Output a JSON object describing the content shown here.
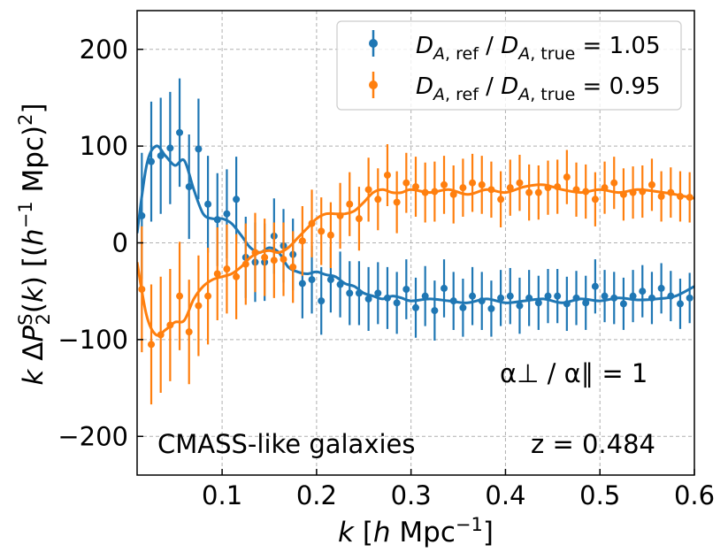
{
  "chart_data": {
    "type": "scatter",
    "xlabel_plain": "k [h Mpc^-1]",
    "ylabel_plain": "k ΔP2^S(k) [(h^-1 Mpc)^2]",
    "xlim": [
      0.01,
      0.6
    ],
    "ylim": [
      -240,
      240
    ],
    "xticks": [
      0.1,
      0.2,
      0.3,
      0.4,
      0.5,
      0.6
    ],
    "xtick_labels": [
      "0.1",
      "0.2",
      "0.3",
      "0.4",
      "0.5",
      "0.6"
    ],
    "yticks": [
      -200,
      -100,
      0,
      100,
      200
    ],
    "ytick_labels": [
      "−200",
      "−100",
      "0",
      "100",
      "200"
    ],
    "grid": true,
    "legend_position": "top-right",
    "annotations": {
      "ratio": "α⊥ / α∥ = 1",
      "sample": "CMASS-like galaxies",
      "redshift": "z = 0.484"
    },
    "series": [
      {
        "name": "D_A,ref / D_A,true = 1.05",
        "color": "#1f77b4",
        "x": [
          0.015,
          0.025,
          0.035,
          0.045,
          0.055,
          0.065,
          0.075,
          0.085,
          0.095,
          0.105,
          0.115,
          0.125,
          0.135,
          0.145,
          0.155,
          0.165,
          0.175,
          0.185,
          0.195,
          0.205,
          0.215,
          0.225,
          0.235,
          0.245,
          0.255,
          0.265,
          0.275,
          0.285,
          0.295,
          0.305,
          0.315,
          0.325,
          0.335,
          0.345,
          0.355,
          0.365,
          0.375,
          0.385,
          0.395,
          0.405,
          0.415,
          0.425,
          0.435,
          0.445,
          0.455,
          0.465,
          0.475,
          0.485,
          0.495,
          0.505,
          0.515,
          0.525,
          0.535,
          0.545,
          0.555,
          0.565,
          0.575,
          0.585,
          0.595
        ],
        "y": [
          28,
          84,
          90,
          98,
          114,
          58,
          97,
          40,
          24,
          30,
          45,
          -15,
          -20,
          -20,
          7,
          -3,
          -12,
          -42,
          -38,
          -60,
          -38,
          -43,
          -52,
          -52,
          -58,
          -52,
          -57,
          -62,
          -48,
          -67,
          -55,
          -70,
          -47,
          -60,
          -67,
          -55,
          -60,
          -68,
          -57,
          -55,
          -65,
          -57,
          -62,
          -55,
          -55,
          -63,
          -57,
          -62,
          -45,
          -55,
          -57,
          -63,
          -55,
          -50,
          -57,
          -47,
          -55,
          -63,
          -57
        ],
        "err": [
          65,
          62,
          60,
          58,
          56,
          54,
          52,
          50,
          48,
          46,
          44,
          42,
          41,
          40,
          39,
          38,
          37,
          36,
          35,
          35,
          34,
          34,
          33,
          33,
          33,
          32,
          32,
          32,
          31,
          31,
          31,
          31,
          30,
          30,
          30,
          30,
          30,
          29,
          29,
          29,
          29,
          29,
          28,
          28,
          28,
          28,
          28,
          28,
          28,
          27,
          27,
          27,
          27,
          27,
          27,
          26,
          26,
          26,
          26
        ],
        "model_x": [
          0.01,
          0.02,
          0.03,
          0.04,
          0.05,
          0.06,
          0.07,
          0.08,
          0.09,
          0.1,
          0.11,
          0.12,
          0.13,
          0.14,
          0.15,
          0.16,
          0.17,
          0.18,
          0.19,
          0.2,
          0.21,
          0.22,
          0.23,
          0.24,
          0.25,
          0.26,
          0.27,
          0.28,
          0.29,
          0.3,
          0.32,
          0.34,
          0.36,
          0.38,
          0.4,
          0.42,
          0.44,
          0.46,
          0.48,
          0.5,
          0.52,
          0.54,
          0.56,
          0.58,
          0.6
        ],
        "model_y": [
          10,
          80,
          100,
          90,
          80,
          85,
          55,
          30,
          25,
          25,
          20,
          8,
          -5,
          -10,
          -5,
          -10,
          -25,
          -30,
          -32,
          -30,
          -33,
          -35,
          -42,
          -45,
          -52,
          -55,
          -58,
          -55,
          -57,
          -60,
          -58,
          -60,
          -62,
          -58,
          -62,
          -60,
          -58,
          -62,
          -58,
          -60,
          -57,
          -59,
          -58,
          -55,
          -45
        ]
      },
      {
        "name": "D_A,ref / D_A,true = 0.95",
        "color": "#ff7f0e",
        "x": [
          0.015,
          0.025,
          0.035,
          0.045,
          0.055,
          0.065,
          0.075,
          0.085,
          0.095,
          0.105,
          0.115,
          0.125,
          0.135,
          0.145,
          0.155,
          0.165,
          0.175,
          0.185,
          0.195,
          0.205,
          0.215,
          0.225,
          0.235,
          0.245,
          0.255,
          0.265,
          0.275,
          0.285,
          0.295,
          0.305,
          0.315,
          0.325,
          0.335,
          0.345,
          0.355,
          0.365,
          0.375,
          0.385,
          0.395,
          0.405,
          0.415,
          0.425,
          0.435,
          0.445,
          0.455,
          0.465,
          0.475,
          0.485,
          0.495,
          0.505,
          0.515,
          0.525,
          0.535,
          0.545,
          0.555,
          0.565,
          0.575,
          0.585,
          0.595
        ],
        "y": [
          -48,
          -105,
          -95,
          -85,
          -55,
          -92,
          -65,
          -55,
          -32,
          -27,
          -35,
          -22,
          -10,
          -15,
          -18,
          -17,
          -25,
          2,
          20,
          12,
          8,
          28,
          40,
          25,
          55,
          45,
          70,
          42,
          62,
          58,
          52,
          53,
          60,
          50,
          57,
          62,
          60,
          55,
          45,
          57,
          62,
          52,
          52,
          57,
          58,
          68,
          55,
          53,
          45,
          57,
          62,
          50,
          52,
          53,
          60,
          48,
          52,
          48,
          47
        ],
        "err": [
          65,
          62,
          60,
          58,
          56,
          54,
          52,
          50,
          48,
          46,
          44,
          42,
          41,
          40,
          39,
          38,
          37,
          36,
          35,
          35,
          34,
          34,
          33,
          33,
          33,
          32,
          32,
          32,
          31,
          31,
          31,
          31,
          30,
          30,
          30,
          30,
          30,
          29,
          29,
          29,
          29,
          29,
          28,
          28,
          28,
          28,
          28,
          28,
          28,
          27,
          27,
          27,
          27,
          27,
          27,
          26,
          26,
          26,
          26
        ],
        "model_x": [
          0.01,
          0.02,
          0.03,
          0.04,
          0.05,
          0.06,
          0.07,
          0.08,
          0.09,
          0.1,
          0.11,
          0.12,
          0.13,
          0.14,
          0.15,
          0.16,
          0.17,
          0.18,
          0.19,
          0.2,
          0.21,
          0.22,
          0.23,
          0.24,
          0.25,
          0.26,
          0.27,
          0.28,
          0.29,
          0.3,
          0.32,
          0.34,
          0.36,
          0.38,
          0.4,
          0.42,
          0.44,
          0.46,
          0.48,
          0.5,
          0.52,
          0.54,
          0.56,
          0.58,
          0.6
        ],
        "model_y": [
          -20,
          -75,
          -95,
          -90,
          -82,
          -80,
          -58,
          -45,
          -38,
          -35,
          -32,
          -25,
          -15,
          -10,
          -8,
          -10,
          -5,
          5,
          15,
          25,
          30,
          30,
          30,
          33,
          42,
          52,
          55,
          52,
          52,
          55,
          52,
          55,
          50,
          55,
          52,
          58,
          60,
          55,
          52,
          55,
          52,
          55,
          53,
          50,
          46
        ]
      }
    ]
  }
}
